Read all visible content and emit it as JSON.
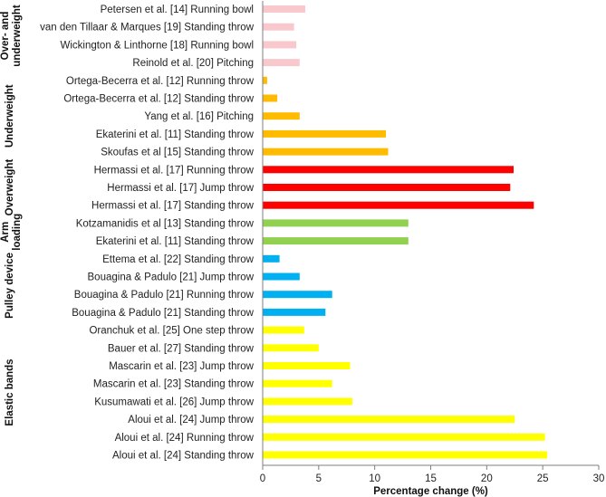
{
  "chart_data": {
    "type": "bar",
    "orientation": "horizontal",
    "title": "",
    "xlabel": "Percentage change (%)",
    "ylabel": "",
    "xlim": [
      0,
      30
    ],
    "xticks": [
      0,
      5,
      10,
      15,
      20,
      25,
      30
    ],
    "grid": false,
    "categories": [
      "Petersen et al. [14] Running bowl",
      "van den Tillaar & Marques [19] Standing throw",
      "Wickington & Linthorne [18] Running bowl",
      "Reinold et al. [20] Pitching",
      "Ortega-Becerra et al. [12] Running throw",
      "Ortega-Becerra et al. [12] Standing throw",
      "Yang et al. [16] Pitching",
      "Ekaterini et al. [11] Standing throw",
      "Skoufas et al [15] Standing throw",
      "Hermassi et al. [17] Running throw",
      "Hermassi et al. [17] Jump throw",
      "Hermassi et al. [17] Standing throw",
      "Kotzamanidis et al [13] Standing throw",
      "Ekaterini et al. [11] Standing throw",
      "Ettema et al. [22] Standing throw",
      "Bouagina & Padulo [21] Jump throw",
      "Bouagina & Padulo [21] Running throw",
      "Bouagina & Padulo [21] Standing throw",
      "Oranchuk et al. [25] One step throw",
      "Bauer et al. [27] Standing throw",
      "Mascarin et al. [23] Jump throw",
      "Mascarin et al. [23] Standing throw",
      "Kusumawati et al. [26] Jump throw",
      "Aloui et al. [24] Jump throw",
      "Aloui et al. [24] Running throw",
      "Aloui et al. [24] Standing throw"
    ],
    "values": [
      3.8,
      2.8,
      3.0,
      3.3,
      0.4,
      1.3,
      3.3,
      11.0,
      11.2,
      22.4,
      22.1,
      24.2,
      13.0,
      13.0,
      1.5,
      3.3,
      6.2,
      5.6,
      3.7,
      5.0,
      7.8,
      6.2,
      8.0,
      22.5,
      25.2,
      25.4
    ],
    "groups": [
      {
        "name": "Over- and underweight",
        "lines": [
          "Over- and",
          "underweight"
        ],
        "start": 0,
        "end": 3,
        "color": "#f8c8cc"
      },
      {
        "name": "Underweight",
        "lines": [
          "Underweight"
        ],
        "start": 4,
        "end": 8,
        "color": "#ffbb00"
      },
      {
        "name": "Overweight",
        "lines": [
          "Overweight"
        ],
        "start": 9,
        "end": 11,
        "color": "#ff0000"
      },
      {
        "name": "Arm loading",
        "lines": [
          "Arm",
          "loading"
        ],
        "start": 12,
        "end": 13,
        "color": "#92d050"
      },
      {
        "name": "Pulley device",
        "lines": [
          "Pulley device"
        ],
        "start": 14,
        "end": 17,
        "color": "#00b0f0"
      },
      {
        "name": "Elastic bands",
        "lines": [
          "Elastic bands"
        ],
        "start": 18,
        "end": 25,
        "color": "#ffff00"
      }
    ]
  }
}
